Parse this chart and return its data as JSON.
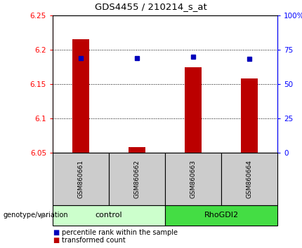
{
  "title": "GDS4455 / 210214_s_at",
  "samples": [
    "GSM860661",
    "GSM860662",
    "GSM860663",
    "GSM860664"
  ],
  "groups": [
    "control",
    "control",
    "RhoGDI2",
    "RhoGDI2"
  ],
  "bar_bottoms": [
    6.05,
    6.05,
    6.05,
    6.05
  ],
  "bar_tops": [
    6.215,
    6.058,
    6.175,
    6.158
  ],
  "percentile_values": [
    6.188,
    6.188,
    6.19,
    6.187
  ],
  "ylim": [
    6.05,
    6.25
  ],
  "yticks_left": [
    6.05,
    6.1,
    6.15,
    6.2,
    6.25
  ],
  "yticks_right_pct": [
    0,
    25,
    50,
    75,
    100
  ],
  "bar_color": "#bb0000",
  "percentile_color": "#0000bb",
  "group_colors": {
    "control": "#ccffcc",
    "RhoGDI2": "#44dd44"
  },
  "sample_bg_color": "#cccccc",
  "legend_red_label": "transformed count",
  "legend_blue_label": "percentile rank within the sample",
  "genotype_label": "genotype/variation",
  "bar_width": 0.3
}
